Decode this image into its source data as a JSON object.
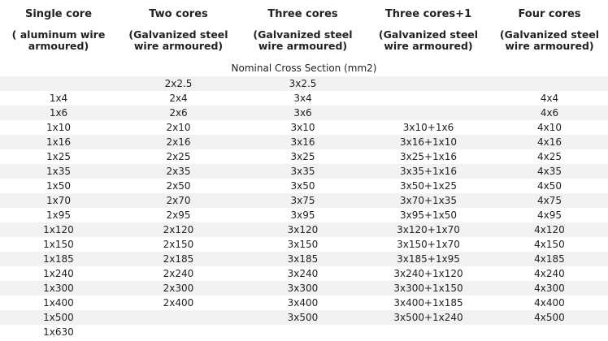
{
  "headers": [
    {
      "title": "Single core",
      "sub": "( aluminum wire armoured)"
    },
    {
      "title": "Two cores",
      "sub": "(Galvanized steel wire armoured)"
    },
    {
      "title": "Three cores",
      "sub": "(Galvanized steel wire armoured)"
    },
    {
      "title": "Three cores+1",
      "sub": "(Galvanized steel wire armoured)"
    },
    {
      "title": "Four cores",
      "sub": "(Galvanized steel wire armoured)"
    }
  ],
  "caption": "Nominal Cross Section (mm2)",
  "rows": [
    [
      "",
      "2x2.5",
      "3x2.5",
      "",
      ""
    ],
    [
      "1x4",
      "2x4",
      "3x4",
      "",
      "4x4"
    ],
    [
      "1x6",
      "2x6",
      "3x6",
      "",
      "4x6"
    ],
    [
      "1x10",
      "2x10",
      "3x10",
      "3x10+1x6",
      "4x10"
    ],
    [
      "1x16",
      "2x16",
      "3x16",
      "3x16+1x10",
      "4x16"
    ],
    [
      "1x25",
      "2x25",
      "3x25",
      "3x25+1x16",
      "4x25"
    ],
    [
      "1x35",
      "2x35",
      "3x35",
      "3x35+1x16",
      "4x35"
    ],
    [
      "1x50",
      "2x50",
      "3x50",
      "3x50+1x25",
      "4x50"
    ],
    [
      "1x70",
      "2x70",
      "3x75",
      "3x70+1x35",
      "4x75"
    ],
    [
      "1x95",
      "2x95",
      "3x95",
      "3x95+1x50",
      "4x95"
    ],
    [
      "1x120",
      "2x120",
      "3x120",
      "3x120+1x70",
      "4x120"
    ],
    [
      "1x150",
      "2x150",
      "3x150",
      "3x150+1x70",
      "4x150"
    ],
    [
      "1x185",
      "2x185",
      "3x185",
      "3x185+1x95",
      "4x185"
    ],
    [
      "1x240",
      "2x240",
      "3x240",
      "3x240+1x120",
      "4x240"
    ],
    [
      "1x300",
      "2x300",
      "3x300",
      "3x300+1x150",
      "4x300"
    ],
    [
      "1x400",
      "2x400",
      "3x400",
      "3x400+1x185",
      "4x400"
    ],
    [
      "1x500",
      "",
      "3x500",
      "3x500+1x240",
      "4x500"
    ],
    [
      "1x630",
      "",
      "",
      "",
      ""
    ]
  ]
}
